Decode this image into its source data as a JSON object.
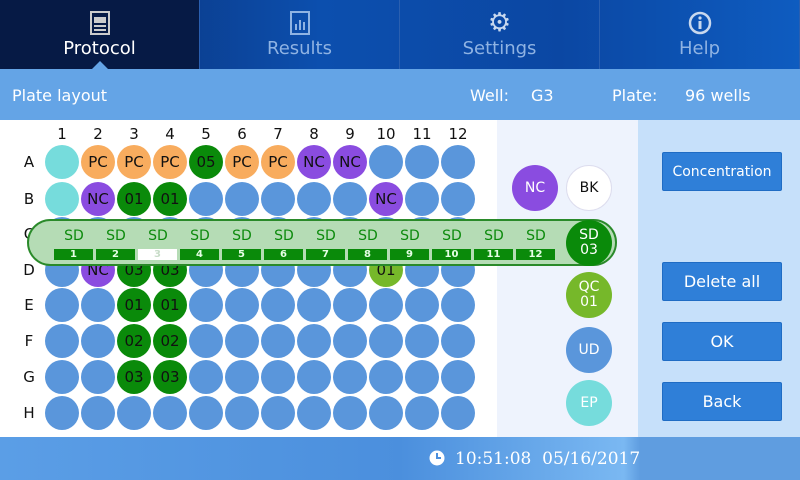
{
  "tabs": [
    {
      "label": "Protocol",
      "icon": "protocol-icon",
      "active": true
    },
    {
      "label": "Results",
      "icon": "results-chart-icon"
    },
    {
      "label": "Settings",
      "icon": "gear-icon"
    },
    {
      "label": "Help",
      "icon": "info-icon"
    }
  ],
  "subheader": {
    "title": "Plate layout",
    "well_label": "Well:",
    "well_value": "G3",
    "plate_label": "Plate:",
    "plate_value": "96 wells"
  },
  "plate": {
    "columns": [
      "1",
      "2",
      "3",
      "4",
      "5",
      "6",
      "7",
      "8",
      "9",
      "10",
      "11",
      "12"
    ],
    "rows": [
      "A",
      "B",
      "C",
      "D",
      "E",
      "F",
      "G",
      "H"
    ],
    "colors": {
      "EP": "#76dcdc",
      "PC": "#f8ac5e",
      "NC": "#8a4ce0",
      "SD": "#0a8a0a",
      "QC": "#76b82a",
      "UD": "#5a96db",
      "BK": "#ffffff"
    },
    "wells": [
      [
        [
          "EP",
          ""
        ],
        [
          "PC",
          "PC"
        ],
        [
          "PC",
          "PC"
        ],
        [
          "PC",
          "PC"
        ],
        [
          "SD",
          "05"
        ],
        [
          "PC",
          "PC"
        ],
        [
          "PC",
          "PC"
        ],
        [
          "NC",
          "NC"
        ],
        [
          "NC",
          "NC"
        ],
        [
          "UD",
          ""
        ],
        [
          "UD",
          ""
        ],
        [
          "UD",
          ""
        ]
      ],
      [
        [
          "EP",
          ""
        ],
        [
          "NC",
          "NC"
        ],
        [
          "SD",
          "01"
        ],
        [
          "SD",
          "01"
        ],
        [
          "UD",
          ""
        ],
        [
          "UD",
          ""
        ],
        [
          "UD",
          ""
        ],
        [
          "UD",
          ""
        ],
        [
          "UD",
          ""
        ],
        [
          "NC",
          "NC"
        ],
        [
          "UD",
          ""
        ],
        [
          "UD",
          ""
        ]
      ],
      [
        [
          "UD",
          ""
        ],
        [
          "UD",
          ""
        ],
        [
          "UD",
          ""
        ],
        [
          "UD",
          ""
        ],
        [
          "UD",
          ""
        ],
        [
          "UD",
          ""
        ],
        [
          "UD",
          ""
        ],
        [
          "UD",
          ""
        ],
        [
          "UD",
          ""
        ],
        [
          "UD",
          ""
        ],
        [
          "UD",
          ""
        ],
        [
          "UD",
          ""
        ]
      ],
      [
        [
          "UD",
          ""
        ],
        [
          "NC",
          "NC"
        ],
        [
          "SD",
          "03"
        ],
        [
          "SD",
          "03"
        ],
        [
          "UD",
          ""
        ],
        [
          "UD",
          ""
        ],
        [
          "UD",
          ""
        ],
        [
          "UD",
          ""
        ],
        [
          "UD",
          ""
        ],
        [
          "QC",
          "01"
        ],
        [
          "UD",
          ""
        ],
        [
          "UD",
          ""
        ]
      ],
      [
        [
          "UD",
          ""
        ],
        [
          "UD",
          ""
        ],
        [
          "SD",
          "01"
        ],
        [
          "SD",
          "01"
        ],
        [
          "UD",
          ""
        ],
        [
          "UD",
          ""
        ],
        [
          "UD",
          ""
        ],
        [
          "UD",
          ""
        ],
        [
          "UD",
          ""
        ],
        [
          "UD",
          ""
        ],
        [
          "UD",
          ""
        ],
        [
          "UD",
          ""
        ]
      ],
      [
        [
          "UD",
          ""
        ],
        [
          "UD",
          ""
        ],
        [
          "SD",
          "02"
        ],
        [
          "SD",
          "02"
        ],
        [
          "UD",
          ""
        ],
        [
          "UD",
          ""
        ],
        [
          "UD",
          ""
        ],
        [
          "UD",
          ""
        ],
        [
          "UD",
          ""
        ],
        [
          "UD",
          ""
        ],
        [
          "UD",
          ""
        ],
        [
          "UD",
          ""
        ]
      ],
      [
        [
          "UD",
          ""
        ],
        [
          "UD",
          ""
        ],
        [
          "SD",
          "03"
        ],
        [
          "SD",
          "03"
        ],
        [
          "UD",
          ""
        ],
        [
          "UD",
          ""
        ],
        [
          "UD",
          ""
        ],
        [
          "UD",
          ""
        ],
        [
          "UD",
          ""
        ],
        [
          "UD",
          ""
        ],
        [
          "UD",
          ""
        ],
        [
          "UD",
          ""
        ]
      ],
      [
        [
          "UD",
          ""
        ],
        [
          "UD",
          ""
        ],
        [
          "UD",
          ""
        ],
        [
          "UD",
          ""
        ],
        [
          "UD",
          ""
        ],
        [
          "UD",
          ""
        ],
        [
          "UD",
          ""
        ],
        [
          "UD",
          ""
        ],
        [
          "UD",
          ""
        ],
        [
          "UD",
          ""
        ],
        [
          "UD",
          ""
        ],
        [
          "UD",
          ""
        ]
      ]
    ]
  },
  "sd_popup": {
    "label": "SD",
    "numbers": [
      "1",
      "2",
      "3",
      "4",
      "5",
      "6",
      "7",
      "8",
      "9",
      "10",
      "11",
      "12"
    ],
    "selected": "3",
    "current": {
      "line1": "SD",
      "line2": "03"
    }
  },
  "legend": {
    "nc": "NC",
    "bk": "BK",
    "qc": {
      "line1": "QC",
      "line2": "01"
    },
    "ud": "UD",
    "ep": "EP"
  },
  "buttons": {
    "concentration": "Concentration",
    "delete_all": "Delete all",
    "ok": "OK",
    "back": "Back"
  },
  "footer": {
    "clock_icon": "clock-icon",
    "time": "10:51:08",
    "date": "05/16/2017"
  }
}
